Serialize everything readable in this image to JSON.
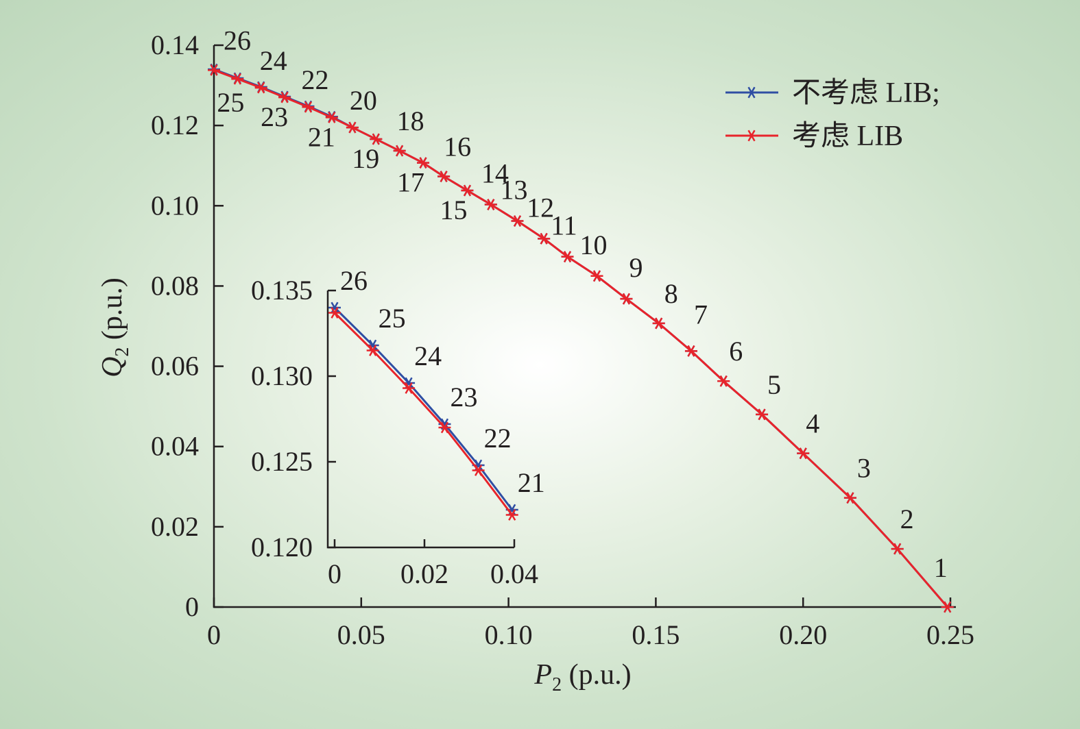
{
  "chart_data": [
    {
      "type": "line",
      "id": "main",
      "xlabel": "P2 (p.u.)",
      "xlabel_var": "P",
      "xlabel_sub": "2",
      "xlabel_unit": " (p.u.)",
      "ylabel": "Q2 (p.u.)",
      "ylabel_var": "Q",
      "ylabel_sub": "2",
      "ylabel_unit": " (p.u.)",
      "xlim": [
        0,
        0.25
      ],
      "ylim": [
        0,
        0.14
      ],
      "xticks": [
        0,
        0.05,
        0.1,
        0.15,
        0.2,
        0.25
      ],
      "xtick_labels": [
        "0",
        "0.05",
        "0.10",
        "0.15",
        "0.20",
        "0.25"
      ],
      "yticks": [
        0,
        0.02,
        0.04,
        0.06,
        0.08,
        0.1,
        0.12,
        0.14
      ],
      "ytick_labels": [
        "0",
        "0.02",
        "0.04",
        "0.06",
        "0.08",
        "0.10",
        "0.12",
        "0.14"
      ],
      "legend_position": "top-right",
      "series": [
        {
          "name": "不考虑 LIB;",
          "color": "#2f4ea3",
          "marker": "asterisk",
          "x": [
            0.249,
            0.232,
            0.216,
            0.2,
            0.186,
            0.173,
            0.162,
            0.151,
            0.14,
            0.13,
            0.12,
            0.112,
            0.103,
            0.094,
            0.086,
            0.078,
            0.071,
            0.063,
            0.055,
            0.047,
            0.04,
            0.032,
            0.024,
            0.016,
            0.008,
            0.0
          ],
          "y": [
            0.0,
            0.0145,
            0.0272,
            0.0383,
            0.048,
            0.0563,
            0.0638,
            0.0707,
            0.0768,
            0.0825,
            0.0873,
            0.0918,
            0.0962,
            0.1003,
            0.1038,
            0.1073,
            0.1107,
            0.1137,
            0.1166,
            0.1195,
            0.1222,
            0.1248,
            0.1272,
            0.1296,
            0.1318,
            0.134
          ],
          "point_labels": [
            "1",
            "2",
            "3",
            "4",
            "5",
            "6",
            "7",
            "8",
            "9",
            "10",
            "11",
            "12",
            "13",
            "14",
            "15",
            "16",
            "17",
            "18",
            "19",
            "20",
            "21",
            "22",
            "23",
            "24",
            "25",
            "26"
          ]
        },
        {
          "name": "考虑 LIB",
          "color": "#e8242b",
          "marker": "asterisk",
          "x": [
            0.249,
            0.232,
            0.216,
            0.2,
            0.186,
            0.173,
            0.162,
            0.151,
            0.14,
            0.13,
            0.12,
            0.112,
            0.103,
            0.094,
            0.086,
            0.078,
            0.071,
            0.063,
            0.055,
            0.047,
            0.04,
            0.032,
            0.024,
            0.016,
            0.008,
            0.0
          ],
          "y": [
            0.0,
            0.0145,
            0.0272,
            0.0383,
            0.048,
            0.0563,
            0.0638,
            0.0707,
            0.0768,
            0.0825,
            0.0873,
            0.0918,
            0.0962,
            0.1003,
            0.1038,
            0.1073,
            0.1107,
            0.1137,
            0.1166,
            0.1195,
            0.122,
            0.1246,
            0.127,
            0.1294,
            0.1316,
            0.1338
          ]
        }
      ]
    },
    {
      "type": "line",
      "id": "inset",
      "xlim": [
        0,
        0.04
      ],
      "ylim": [
        0.12,
        0.135
      ],
      "xticks": [
        0,
        0.02,
        0.04
      ],
      "xtick_labels": [
        "0",
        "0.02",
        "0.04"
      ],
      "yticks": [
        0.12,
        0.125,
        0.13,
        0.135
      ],
      "ytick_labels": [
        "0.120",
        "0.125",
        "0.130",
        "0.135"
      ],
      "series": [
        {
          "name": "不考虑 LIB;",
          "color": "#2f4ea3",
          "x": [
            0.0,
            0.0085,
            0.0165,
            0.0245,
            0.032,
            0.0395
          ],
          "y": [
            0.134,
            0.1318,
            0.1296,
            0.1272,
            0.1248,
            0.1222
          ],
          "point_labels": [
            "26",
            "25",
            "24",
            "23",
            "22",
            "21"
          ]
        },
        {
          "name": "考虑 LIB",
          "color": "#e8242b",
          "x": [
            0.0,
            0.0085,
            0.0165,
            0.0245,
            0.032,
            0.0395
          ],
          "y": [
            0.1337,
            0.1315,
            0.1293,
            0.127,
            0.1245,
            0.1219
          ]
        }
      ]
    }
  ]
}
